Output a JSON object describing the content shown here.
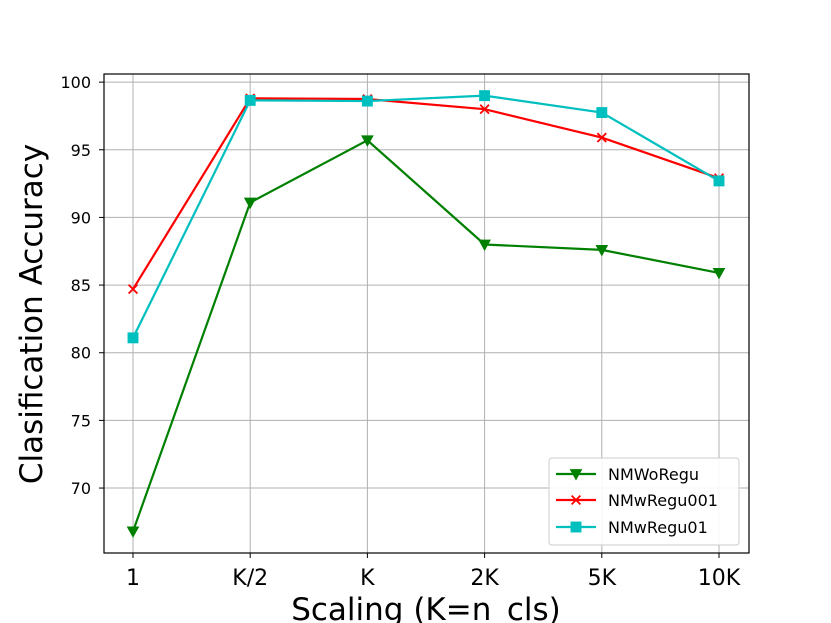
{
  "chart_data": {
    "type": "line",
    "xlabel": "Scaling (K=n_cls)",
    "ylabel": "Clasification Accuracy",
    "categories": [
      "1",
      "K/2",
      "K",
      "2K",
      "5K",
      "10K"
    ],
    "yticks": [
      70,
      75,
      80,
      85,
      90,
      95,
      100
    ],
    "ylim": [
      65.2,
      100.6
    ],
    "grid": true,
    "legend_position": "lower-right",
    "series": [
      {
        "name": "NMWoRegu",
        "color": "#008000",
        "marker": "triangle-down",
        "values": [
          66.8,
          91.1,
          95.7,
          88.0,
          87.6,
          85.9
        ]
      },
      {
        "name": "NMwRegu001",
        "color": "#ff0000",
        "marker": "x",
        "values": [
          84.7,
          98.8,
          98.75,
          98.0,
          95.9,
          92.9
        ]
      },
      {
        "name": "NMwRegu01",
        "color": "#00bfbf",
        "marker": "square",
        "values": [
          81.1,
          98.65,
          98.6,
          99.0,
          97.75,
          92.7
        ]
      }
    ]
  }
}
